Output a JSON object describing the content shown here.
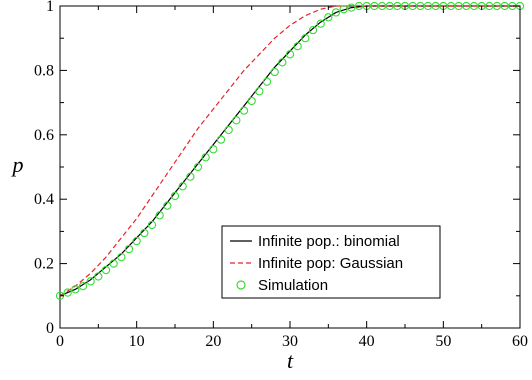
{
  "chart_data": {
    "type": "line",
    "xlabel": "t",
    "ylabel": "p",
    "xlim": [
      0,
      60
    ],
    "ylim": [
      0,
      1
    ],
    "xticks": [
      "0",
      "10",
      "20",
      "30",
      "40",
      "50",
      "60"
    ],
    "yticks": [
      "0",
      "0.2",
      "0.4",
      "0.6",
      "0.8",
      "1"
    ],
    "grid": false,
    "legend_position": "lower-right",
    "series": [
      {
        "name": "Infinite pop.: binomial",
        "style": "solid",
        "color": "#000000",
        "x": [
          0,
          2,
          4,
          6,
          8,
          10,
          12,
          14,
          16,
          18,
          20,
          22,
          24,
          26,
          28,
          30,
          32,
          34,
          36,
          38,
          40,
          45,
          50,
          55,
          60
        ],
        "y": [
          0.1,
          0.12,
          0.15,
          0.19,
          0.23,
          0.28,
          0.33,
          0.39,
          0.45,
          0.51,
          0.57,
          0.63,
          0.69,
          0.75,
          0.81,
          0.86,
          0.91,
          0.95,
          0.98,
          0.995,
          1.0,
          1.0,
          1.0,
          1.0,
          1.0
        ]
      },
      {
        "name": "Infinite pop: Gaussian",
        "style": "dashed",
        "color": "#e8232a",
        "x": [
          0,
          2,
          4,
          6,
          8,
          10,
          12,
          14,
          16,
          18,
          20,
          22,
          24,
          26,
          28,
          30,
          32,
          34,
          36,
          38,
          40,
          45,
          50,
          55,
          60
        ],
        "y": [
          0.1,
          0.13,
          0.17,
          0.22,
          0.28,
          0.34,
          0.41,
          0.48,
          0.55,
          0.62,
          0.68,
          0.74,
          0.8,
          0.85,
          0.9,
          0.94,
          0.97,
          0.99,
          1.0,
          1.0,
          1.0,
          1.0,
          1.0,
          1.0,
          1.0
        ]
      },
      {
        "name": "Simulation",
        "style": "markers",
        "color": "#33dd33",
        "x": [
          0,
          1,
          2,
          3,
          4,
          5,
          6,
          7,
          8,
          9,
          10,
          11,
          12,
          13,
          14,
          15,
          16,
          17,
          18,
          19,
          20,
          21,
          22,
          23,
          24,
          25,
          26,
          27,
          28,
          29,
          30,
          31,
          32,
          33,
          34,
          35,
          36,
          37,
          38,
          39,
          40,
          41,
          42,
          43,
          44,
          45,
          46,
          47,
          48,
          49,
          50,
          51,
          52,
          53,
          54,
          55,
          56,
          57,
          58,
          59,
          60
        ],
        "y": [
          0.1,
          0.11,
          0.12,
          0.13,
          0.145,
          0.16,
          0.18,
          0.2,
          0.22,
          0.245,
          0.27,
          0.295,
          0.32,
          0.35,
          0.38,
          0.41,
          0.44,
          0.47,
          0.5,
          0.53,
          0.555,
          0.585,
          0.615,
          0.645,
          0.675,
          0.705,
          0.735,
          0.765,
          0.795,
          0.825,
          0.85,
          0.875,
          0.9,
          0.925,
          0.945,
          0.965,
          0.98,
          0.99,
          0.995,
          1.0,
          1.0,
          1.0,
          1.0,
          1.0,
          1.0,
          1.0,
          1.0,
          1.0,
          1.0,
          1.0,
          1.0,
          1.0,
          1.0,
          1.0,
          1.0,
          1.0,
          1.0,
          1.0,
          1.0,
          1.0,
          1.0
        ]
      }
    ]
  }
}
